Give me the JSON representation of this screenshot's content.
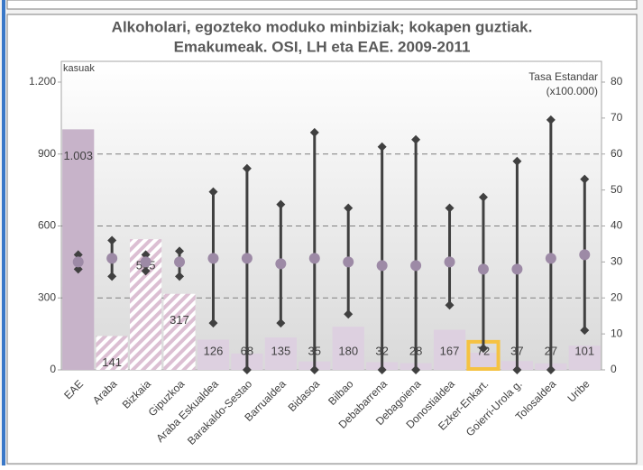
{
  "chart_data": {
    "type": "bar_with_intervals",
    "title": [
      "Alkoholari, egozteko moduko minbiziak; kokapen guztiak.",
      "Emakumeak. OSI, LH eta EAE. 2009-2011"
    ],
    "y_label": "kasuak",
    "y2_label": [
      "Tasa Estandar",
      "(x100.000)"
    ],
    "categories": [
      "EAE",
      "Araba",
      "Bizkaia",
      "Gipuzkoa",
      "Araba Eskualdea",
      "Barakaldo-Sestao",
      "Barrualdea",
      "Bidasoa",
      "Bilbao",
      "Debabarrena",
      "Debagoiena",
      "Donostialdea",
      "Ezker-Enkart.",
      "Goierri-Urola g.",
      "Tolosaldea",
      "Uribe"
    ],
    "series": [
      {
        "name": "kasuak",
        "color": "#ddd0e0",
        "solid_color": "#c7b3c9",
        "hatch_color": "#dcbfd3",
        "style": [
          "solid",
          "hatch",
          "hatch",
          "hatch",
          "plain",
          "plain",
          "plain",
          "plain",
          "plain",
          "plain",
          "plain",
          "plain",
          "plain",
          "plain",
          "plain",
          "plain"
        ],
        "values": [
          1003,
          141,
          545,
          317,
          126,
          68,
          135,
          35,
          180,
          32,
          28,
          167,
          72,
          37,
          27,
          101
        ],
        "value_labels": [
          "1.003",
          "141",
          "545",
          "317",
          "126",
          "68",
          "135",
          "35",
          "180",
          "32",
          "28",
          "167",
          "72",
          "37",
          "27",
          "101"
        ]
      },
      {
        "name": "Tasa Estandar",
        "axis": "y2",
        "color": "#9d8aa6",
        "interval_color": "#404040",
        "values": [
          30,
          31,
          30,
          30,
          31,
          31,
          29.5,
          31,
          30,
          29,
          29,
          30,
          28,
          28,
          31,
          32
        ],
        "lower": [
          28,
          26,
          27.5,
          26,
          13,
          0,
          13,
          0,
          15.5,
          0,
          0,
          18,
          6,
          0,
          0,
          11
        ],
        "upper": [
          32,
          36,
          32,
          33,
          49.5,
          56,
          46,
          66,
          45,
          62,
          64,
          45,
          48,
          58,
          69.5,
          53
        ]
      }
    ],
    "highlight": [
      12
    ],
    "highlight_color": "#f5c242",
    "ylim": [
      0,
      1200
    ],
    "yticks": [
      0,
      300,
      600,
      900,
      {
        "value": 1200,
        "label": "1.200"
      }
    ],
    "y2lim": [
      0,
      80
    ],
    "y2ticks": [
      0,
      10,
      20,
      30,
      40,
      50,
      60,
      70,
      80
    ],
    "grid": true
  }
}
